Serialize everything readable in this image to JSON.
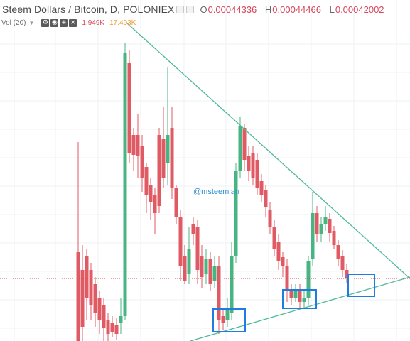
{
  "header": {
    "symbol_title": "Steem Dollars / Bitcoin, D, POLONIEX",
    "ohlc": [
      {
        "key": "O",
        "value": "0.00044336"
      },
      {
        "key": "H",
        "value": "0.00044466"
      },
      {
        "key": "L",
        "value": "0.00042002"
      }
    ]
  },
  "volume": {
    "label": "Vol (20)",
    "value1": "1.949K",
    "value2": "17.493K"
  },
  "watermark": "@msteemian",
  "colors": {
    "bull": "#47b482",
    "bear": "#e05a63",
    "trendline": "#4fb99b",
    "highlight_box": "#1f7de0",
    "price_line": "#d0404e",
    "grid": "#eef1f5",
    "watermark": "#2f8fd0"
  },
  "icons": [
    "settings-icon",
    "eye-icon",
    "plus-icon",
    "close-icon"
  ]
}
